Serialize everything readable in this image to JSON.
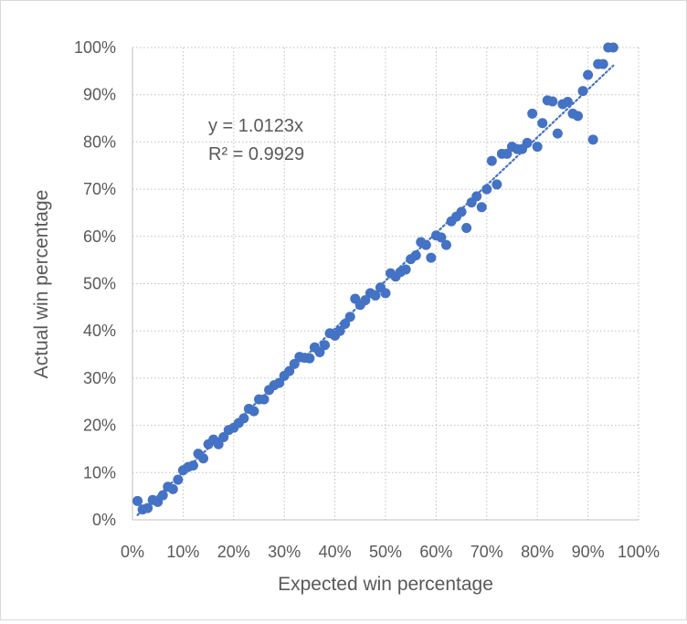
{
  "chart_data": {
    "type": "scatter",
    "title": "",
    "xlabel": "Expected win percentage",
    "ylabel": "Actual win percentage",
    "xlim": [
      0,
      100
    ],
    "ylim": [
      0,
      100
    ],
    "x_ticks": [
      "0%",
      "10%",
      "20%",
      "30%",
      "40%",
      "50%",
      "60%",
      "70%",
      "80%",
      "90%",
      "100%"
    ],
    "y_ticks": [
      "0%",
      "10%",
      "20%",
      "30%",
      "40%",
      "50%",
      "60%",
      "70%",
      "80%",
      "90%",
      "100%"
    ],
    "grid": true,
    "grid_style": "dotted",
    "marker_color": "#4472c4",
    "trendline": {
      "type": "linear-through-origin",
      "slope": 1.0123,
      "x_range": [
        1,
        95
      ],
      "equation_label": "y = 1.0123x",
      "r2_label": "R² = 0.9929"
    },
    "series": [
      {
        "points": [
          [
            1,
            4
          ],
          [
            2,
            2.2
          ],
          [
            3,
            2.5
          ],
          [
            4,
            4.2
          ],
          [
            5,
            3.8
          ],
          [
            6,
            5.2
          ],
          [
            7,
            7
          ],
          [
            8,
            6.5
          ],
          [
            9,
            8.5
          ],
          [
            10,
            10.5
          ],
          [
            11,
            11.2
          ],
          [
            12,
            11.5
          ],
          [
            13,
            14
          ],
          [
            14,
            13
          ],
          [
            15,
            16
          ],
          [
            16,
            17
          ],
          [
            17,
            16
          ],
          [
            18,
            17.5
          ],
          [
            19,
            19
          ],
          [
            20,
            19.5
          ],
          [
            21,
            20.5
          ],
          [
            22,
            21.5
          ],
          [
            23,
            23.5
          ],
          [
            24,
            23
          ],
          [
            25,
            25.5
          ],
          [
            26,
            25.5
          ],
          [
            27,
            27.5
          ],
          [
            28,
            28.5
          ],
          [
            29,
            29
          ],
          [
            30,
            30.5
          ],
          [
            31,
            31.5
          ],
          [
            32,
            33
          ],
          [
            33,
            34.5
          ],
          [
            34,
            34.3
          ],
          [
            35,
            34.2
          ],
          [
            36,
            36.5
          ],
          [
            37,
            35.5
          ],
          [
            38,
            37
          ],
          [
            39,
            39.5
          ],
          [
            40,
            39
          ],
          [
            41,
            40
          ],
          [
            42,
            41.5
          ],
          [
            43,
            43
          ],
          [
            44,
            46.8
          ],
          [
            45,
            45.5
          ],
          [
            46,
            46.5
          ],
          [
            47,
            48
          ],
          [
            48,
            47.5
          ],
          [
            49,
            49.2
          ],
          [
            50,
            48
          ],
          [
            51,
            52.2
          ],
          [
            52,
            51.5
          ],
          [
            53,
            52.5
          ],
          [
            54,
            53
          ],
          [
            55,
            55.2
          ],
          [
            56,
            56
          ],
          [
            57,
            58.8
          ],
          [
            58,
            58.2
          ],
          [
            59,
            55.5
          ],
          [
            60,
            60.2
          ],
          [
            61,
            59.8
          ],
          [
            62,
            58.2
          ],
          [
            63,
            63.2
          ],
          [
            64,
            64.2
          ],
          [
            65,
            65.2
          ],
          [
            66,
            61.8
          ],
          [
            67,
            67.2
          ],
          [
            68,
            68.5
          ],
          [
            69,
            66.2
          ],
          [
            70,
            70
          ],
          [
            71,
            76
          ],
          [
            72,
            71
          ],
          [
            73,
            77.5
          ],
          [
            74,
            77.5
          ],
          [
            75,
            79
          ],
          [
            76,
            78.5
          ],
          [
            77,
            78.5
          ],
          [
            78,
            79.8
          ],
          [
            79,
            86
          ],
          [
            80,
            79
          ],
          [
            81,
            84
          ],
          [
            82,
            88.8
          ],
          [
            83,
            88.6
          ],
          [
            84,
            81.8
          ],
          [
            85,
            88
          ],
          [
            86,
            88.5
          ],
          [
            87,
            86
          ],
          [
            88,
            85.5
          ],
          [
            89,
            90.8
          ],
          [
            90,
            94.2
          ],
          [
            91,
            80.5
          ],
          [
            92,
            96.5
          ],
          [
            93,
            96.5
          ],
          [
            94,
            100
          ],
          [
            95,
            100
          ]
        ]
      }
    ]
  }
}
